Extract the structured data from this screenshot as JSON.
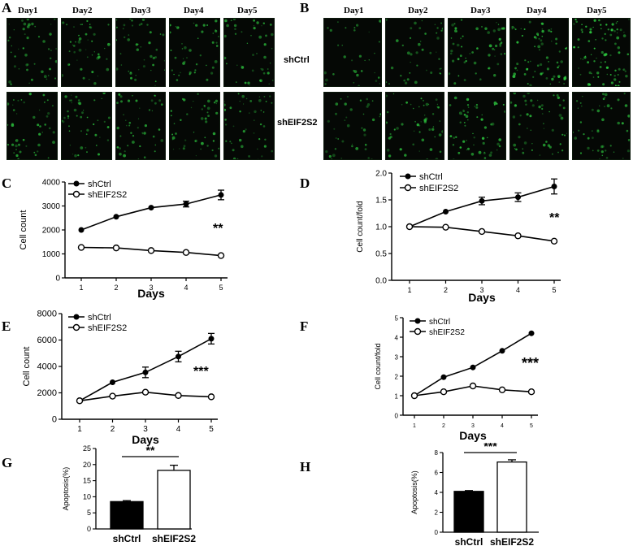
{
  "microscopy": {
    "A": {
      "letter": "A",
      "days": [
        "Day1",
        "Day2",
        "Day3",
        "Day4",
        "Day5"
      ],
      "rows": [
        "shCtrl",
        "shEIF2S2"
      ]
    },
    "B": {
      "letter": "B",
      "days": [
        "Day1",
        "Day2",
        "Day3",
        "Day4",
        "Day5"
      ],
      "rows": [
        "shCtrl",
        "shEIF2S2"
      ],
      "intensity_ctrl": [
        0.45,
        0.6,
        0.8,
        1.0,
        1.2
      ],
      "intensity_kd": [
        0.55,
        0.75,
        0.85,
        0.8,
        0.7
      ]
    },
    "colors": {
      "cells": "#2ecc40",
      "background": "#050805"
    }
  },
  "chart_data": [
    {
      "panel": "C",
      "type": "line",
      "x": [
        1,
        2,
        3,
        4,
        5
      ],
      "xlabel": "Days",
      "ylabel": "Cell count",
      "ylim": [
        0,
        4000
      ],
      "yticks": [
        0,
        1000,
        2000,
        3000,
        4000
      ],
      "ytick_labels": [
        "0",
        "1000",
        "2000",
        "3000",
        "4000"
      ],
      "series": [
        {
          "name": "shCtrl",
          "values": [
            2000,
            2550,
            2930,
            3080,
            3460
          ],
          "err": [
            0,
            0,
            0,
            120,
            200
          ],
          "marker": "filled"
        },
        {
          "name": "shEIF2S2",
          "values": [
            1270,
            1250,
            1140,
            1060,
            930
          ],
          "err": [
            0,
            0,
            0,
            0,
            0
          ],
          "marker": "open"
        }
      ],
      "annotation": "**"
    },
    {
      "panel": "D",
      "type": "line",
      "x": [
        1,
        2,
        3,
        4,
        5
      ],
      "xlabel": "Days",
      "ylabel": "Cell count/fold",
      "ylim": [
        0,
        2.0
      ],
      "yticks": [
        0,
        0.5,
        1.0,
        1.5,
        2.0
      ],
      "ytick_labels": [
        "0.0",
        "0.5",
        "1.0",
        "1.5",
        "2.0"
      ],
      "series": [
        {
          "name": "shCtrl",
          "values": [
            1.0,
            1.28,
            1.48,
            1.55,
            1.75
          ],
          "err": [
            0,
            0,
            0.07,
            0.08,
            0.14
          ],
          "marker": "filled"
        },
        {
          "name": "shEIF2S2",
          "values": [
            1.0,
            0.99,
            0.91,
            0.83,
            0.73
          ],
          "err": [
            0,
            0,
            0,
            0,
            0
          ],
          "marker": "open"
        }
      ],
      "annotation": "**"
    },
    {
      "panel": "E",
      "type": "line",
      "x": [
        1,
        2,
        3,
        4,
        5
      ],
      "xlabel": "Days",
      "ylabel": "Cell count",
      "ylim": [
        0,
        8000
      ],
      "yticks": [
        0,
        2000,
        4000,
        6000,
        8000
      ],
      "ytick_labels": [
        "0",
        "2000",
        "4000",
        "6000",
        "8000"
      ],
      "series": [
        {
          "name": "shCtrl",
          "values": [
            1400,
            2800,
            3550,
            4750,
            6100
          ],
          "err": [
            0,
            0,
            400,
            400,
            400
          ],
          "marker": "filled"
        },
        {
          "name": "shEIF2S2",
          "values": [
            1400,
            1750,
            2050,
            1800,
            1700
          ],
          "err": [
            0,
            0,
            0,
            0,
            0
          ],
          "marker": "open"
        }
      ],
      "annotation": "***"
    },
    {
      "panel": "F",
      "type": "line",
      "x": [
        1,
        2,
        3,
        4,
        5
      ],
      "xlabel": "Days",
      "ylabel": "Cell count/fold",
      "ylim": [
        0,
        5
      ],
      "yticks": [
        0,
        1,
        2,
        3,
        4,
        5
      ],
      "ytick_labels": [
        "0",
        "1",
        "2",
        "3",
        "4",
        "5"
      ],
      "series": [
        {
          "name": "shCtrl",
          "values": [
            1.0,
            1.95,
            2.45,
            3.3,
            4.2
          ],
          "err": [
            0,
            0,
            0,
            0,
            0
          ],
          "marker": "filled"
        },
        {
          "name": "shEIF2S2",
          "values": [
            1.0,
            1.2,
            1.5,
            1.3,
            1.2
          ],
          "err": [
            0,
            0,
            0,
            0,
            0
          ],
          "marker": "open"
        }
      ],
      "annotation": "***"
    },
    {
      "panel": "G",
      "type": "bar",
      "categories": [
        "shCtrl",
        "shEIF2S2"
      ],
      "values": [
        8.5,
        18.2
      ],
      "err": [
        0.3,
        1.6
      ],
      "fills": [
        "#000000",
        "#ffffff"
      ],
      "ylabel": "Apoptosis(%)",
      "ylim": [
        0,
        25
      ],
      "yticks": [
        0,
        5,
        10,
        15,
        20,
        25
      ],
      "ytick_labels": [
        "0",
        "5",
        "10",
        "15",
        "20",
        "25"
      ],
      "annotation": "**"
    },
    {
      "panel": "H",
      "type": "bar",
      "categories": [
        "shCtrl",
        "shEIF2S2"
      ],
      "values": [
        4.1,
        7.05
      ],
      "err": [
        0.08,
        0.22
      ],
      "fills": [
        "#000000",
        "#ffffff"
      ],
      "ylabel": "Apoptosis(%)",
      "ylim": [
        0,
        8
      ],
      "yticks": [
        0,
        2,
        4,
        6,
        8
      ],
      "ytick_labels": [
        "0",
        "2",
        "4",
        "6",
        "8"
      ],
      "annotation": "***"
    }
  ]
}
